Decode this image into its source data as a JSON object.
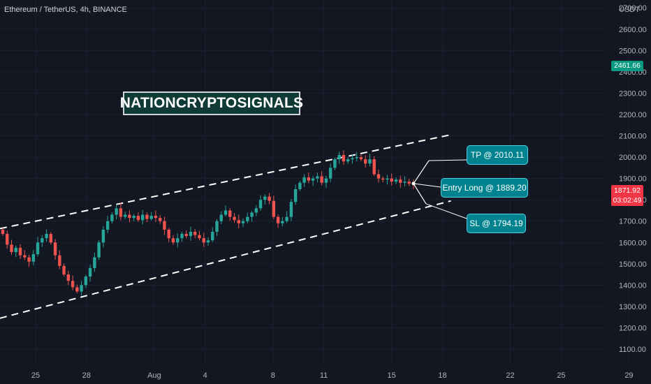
{
  "header": {
    "symbol_label": "Ethereum / TetherUS, 4h, BINANCE",
    "currency": "USDT"
  },
  "brand_label": "NATIONCRYPTOSIGNALS",
  "annotations": {
    "take_profit": "TP @ 2010.11",
    "entry": "Entry Long @ 1889.20",
    "stop_loss": "SL @ 1794.19"
  },
  "price_tags": {
    "high": {
      "value": "2461.66",
      "color": "#089981"
    },
    "current": {
      "value": "1871.92",
      "countdown": "03:02:49",
      "color": "#f23645"
    }
  },
  "colors": {
    "background": "#131722",
    "up": "#26a69a",
    "down": "#ef5350",
    "channel_lines": "#ffffff",
    "callout": "#00838f"
  },
  "chart_data": {
    "type": "candlestick",
    "title": "Ethereum / TetherUS, 4h, BINANCE",
    "ylim": [
      1060,
      2740
    ],
    "y_ticks": [
      1100,
      1200,
      1300,
      1400,
      1500,
      1600,
      1700,
      1800,
      1900,
      2000,
      2100,
      2200,
      2300,
      2400,
      2500,
      2600,
      2700
    ],
    "y_tick_labels": [
      "1100.00",
      "1200.00",
      "1300.00",
      "1400.00",
      "1500.00",
      "1600.00",
      "1700.00",
      "1800.00",
      "1900.00",
      "2000.00",
      "2100.00",
      "2200.00",
      "2300.00",
      "2400.00",
      "2500.00",
      "2600.00",
      "2700.00"
    ],
    "x_ticks": [
      {
        "label": "25",
        "day": 25
      },
      {
        "label": "28",
        "day": 28
      },
      {
        "label": "Aug",
        "day": 32
      },
      {
        "label": "4",
        "day": 35
      },
      {
        "label": "8",
        "day": 39
      },
      {
        "label": "11",
        "day": 42
      },
      {
        "label": "15",
        "day": 46
      },
      {
        "label": "18",
        "day": 49
      },
      {
        "label": "22",
        "day": 53
      },
      {
        "label": "25",
        "day": 56
      },
      {
        "label": "29",
        "day": 60
      }
    ],
    "x_range_days": [
      22.9,
      61.3
    ],
    "closes": [
      1640,
      1590,
      1555,
      1575,
      1540,
      1530,
      1510,
      1545,
      1600,
      1620,
      1640,
      1600,
      1540,
      1490,
      1450,
      1420,
      1390,
      1370,
      1400,
      1440,
      1480,
      1530,
      1600,
      1660,
      1700,
      1730,
      1760,
      1720,
      1730,
      1715,
      1725,
      1705,
      1730,
      1710,
      1725,
      1715,
      1700,
      1660,
      1620,
      1600,
      1620,
      1640,
      1630,
      1650,
      1635,
      1620,
      1600,
      1610,
      1650,
      1700,
      1730,
      1750,
      1720,
      1705,
      1690,
      1700,
      1720,
      1740,
      1760,
      1800,
      1815,
      1795,
      1720,
      1690,
      1700,
      1720,
      1790,
      1850,
      1880,
      1905,
      1890,
      1900,
      1910,
      1880,
      1900,
      1950,
      1990,
      2010,
      1980,
      1990,
      1995,
      2000,
      1990,
      1970,
      1990,
      1920,
      1900,
      1895,
      1900,
      1885,
      1895,
      1880,
      1885,
      1875,
      1872
    ],
    "channel": {
      "upper": {
        "from": {
          "day": 22.9,
          "price": 1665
        },
        "to": {
          "day": 49.5,
          "price": 2105
        }
      },
      "lower": {
        "from": {
          "day": 22.9,
          "price": 1245
        },
        "to": {
          "day": 49.5,
          "price": 1795
        }
      }
    },
    "entry_price": 1889.2,
    "take_profit": 2010.11,
    "stop_loss": 1794.19
  }
}
